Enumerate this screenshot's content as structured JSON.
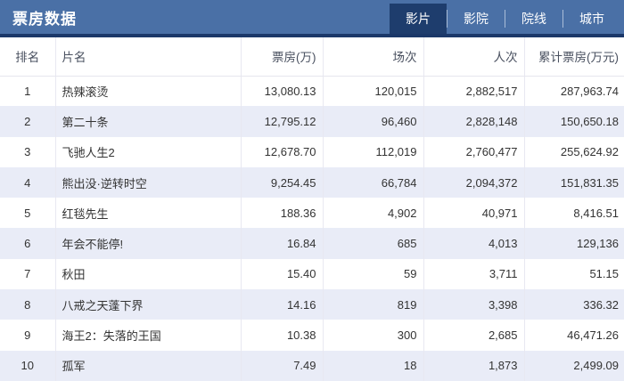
{
  "header": {
    "title": "票房数据",
    "tabs": [
      {
        "label": "影片",
        "active": true
      },
      {
        "label": "影院",
        "active": false
      },
      {
        "label": "院线",
        "active": false
      },
      {
        "label": "城市",
        "active": false
      }
    ]
  },
  "colors": {
    "topbar_bg": "#4a70a6",
    "active_tab_bg": "#1e3d6d",
    "divider": "#1b3869",
    "stripe_row_bg": "#e9ecf7",
    "cell_border": "#e8e8f1",
    "table_header_text": "#4a5160",
    "cell_text": "#333333"
  },
  "table": {
    "columns": {
      "rank": "排名",
      "name": "片名",
      "box_office": "票房(万)",
      "screenings": "场次",
      "admissions": "人次",
      "total": "累计票房(万元)"
    },
    "rows": [
      {
        "rank": "1",
        "name": "热辣滚烫",
        "box_office": "13,080.13",
        "screenings": "120,015",
        "admissions": "2,882,517",
        "total": "287,963.74"
      },
      {
        "rank": "2",
        "name": "第二十条",
        "box_office": "12,795.12",
        "screenings": "96,460",
        "admissions": "2,828,148",
        "total": "150,650.18"
      },
      {
        "rank": "3",
        "name": "飞驰人生2",
        "box_office": "12,678.70",
        "screenings": "112,019",
        "admissions": "2,760,477",
        "total": "255,624.92"
      },
      {
        "rank": "4",
        "name": "熊出没·逆转时空",
        "box_office": "9,254.45",
        "screenings": "66,784",
        "admissions": "2,094,372",
        "total": "151,831.35"
      },
      {
        "rank": "5",
        "name": "红毯先生",
        "box_office": "188.36",
        "screenings": "4,902",
        "admissions": "40,971",
        "total": "8,416.51"
      },
      {
        "rank": "6",
        "name": "年会不能停!",
        "box_office": "16.84",
        "screenings": "685",
        "admissions": "4,013",
        "total": "129,136"
      },
      {
        "rank": "7",
        "name": "秋田",
        "box_office": "15.40",
        "screenings": "59",
        "admissions": "3,711",
        "total": "51.15"
      },
      {
        "rank": "8",
        "name": "八戒之天蓬下界",
        "box_office": "14.16",
        "screenings": "819",
        "admissions": "3,398",
        "total": "336.32"
      },
      {
        "rank": "9",
        "name": "海王2：失落的王国",
        "box_office": "10.38",
        "screenings": "300",
        "admissions": "2,685",
        "total": "46,471.26"
      },
      {
        "rank": "10",
        "name": "孤军",
        "box_office": "7.49",
        "screenings": "18",
        "admissions": "1,873",
        "total": "2,499.09"
      }
    ]
  }
}
